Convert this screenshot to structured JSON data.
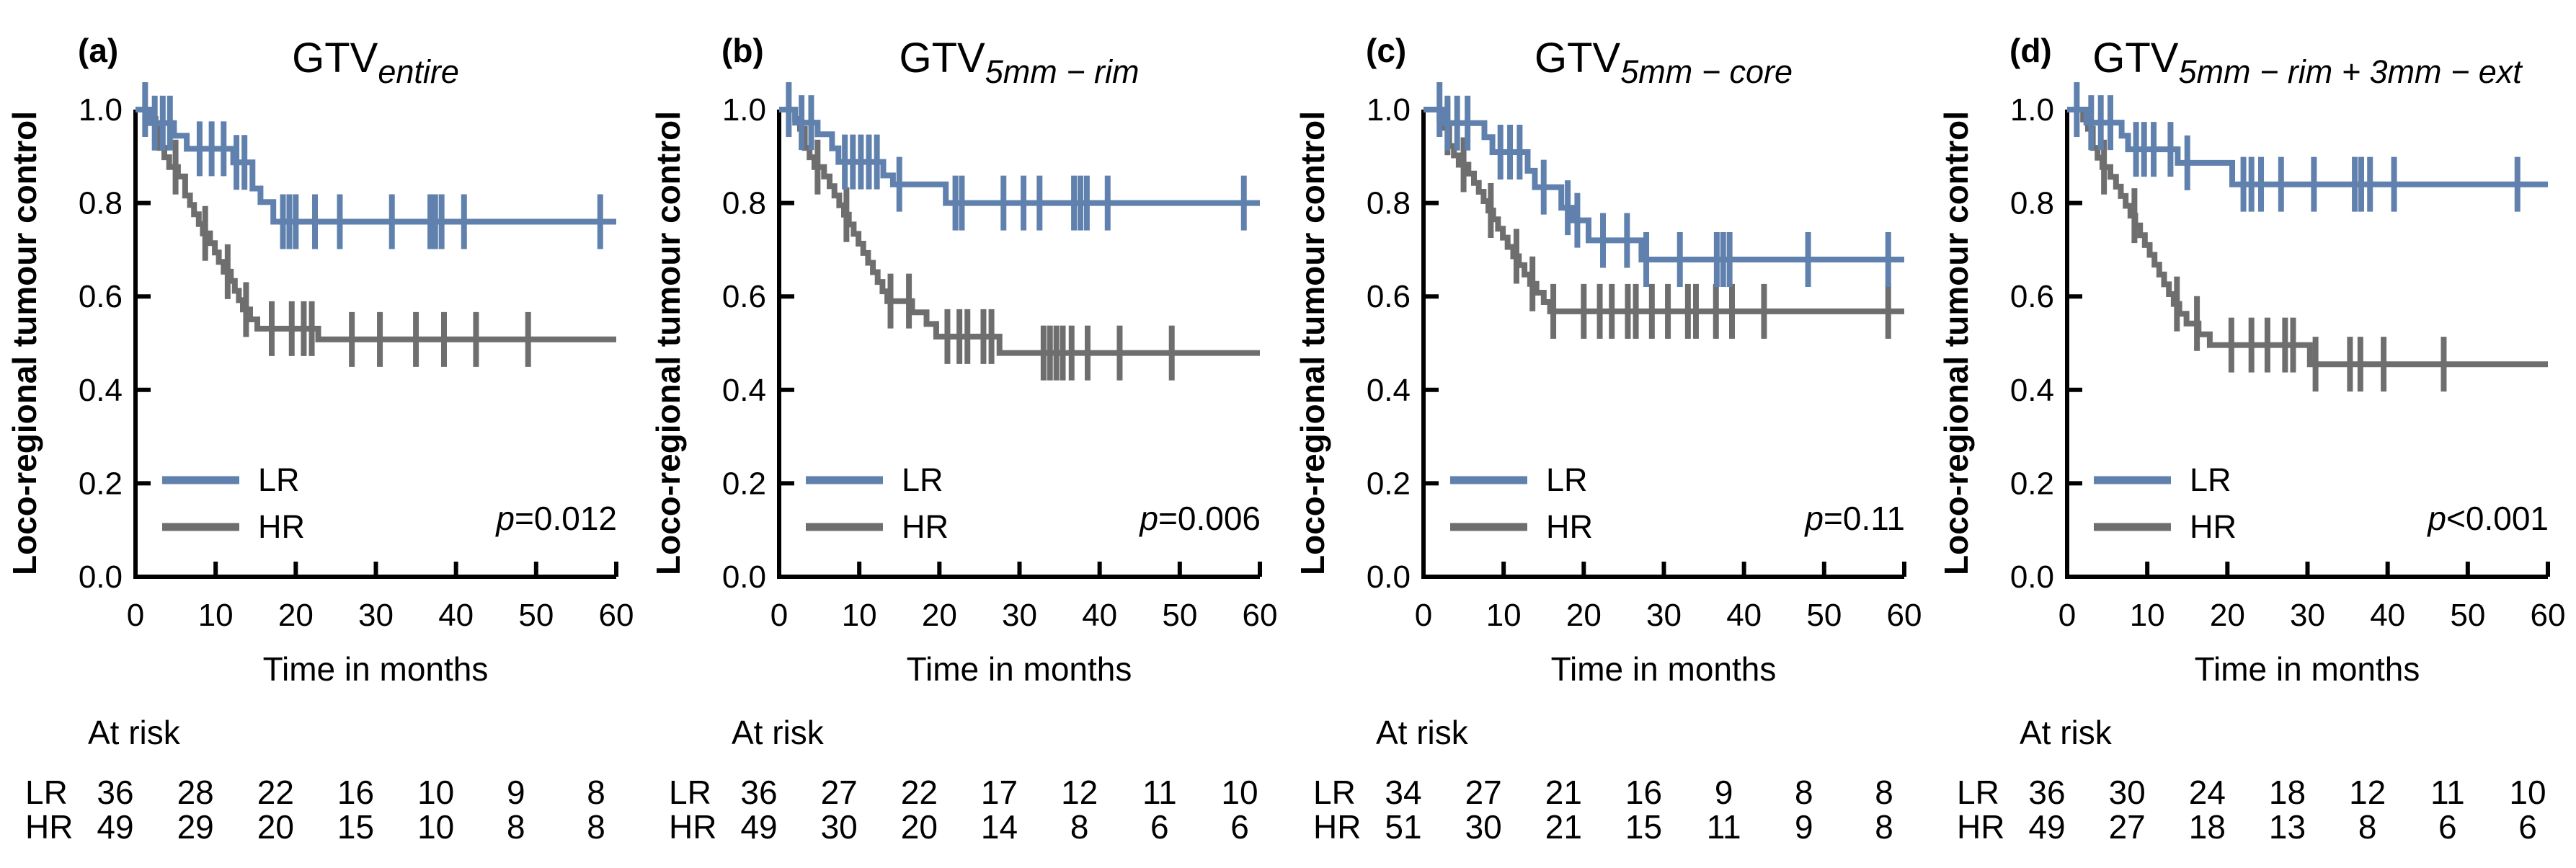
{
  "figure": {
    "ylabel": "Loco-regional tumour control",
    "xlabel": "Time in months",
    "at_risk_header": "At risk",
    "legend": [
      "LR",
      "HR"
    ],
    "colors": {
      "LR": "#6081ad",
      "HR": "#6e6e6e",
      "axis": "#000000"
    },
    "x_ticks": [
      0,
      10,
      20,
      30,
      40,
      50,
      60
    ],
    "y_tick_labels": [
      "0.0",
      "0.2",
      "0.4",
      "0.6",
      "0.8",
      "1.0"
    ]
  },
  "chart_data": [
    {
      "type": "line",
      "subtype": "kaplan-meier",
      "panel_label": "(a)",
      "title": {
        "base": "GTV",
        "subscript": "entire"
      },
      "p_value": {
        "italic": "p",
        "rest": "=0.012"
      },
      "xlabel": "Time in months",
      "ylabel": "Loco-regional tumour control",
      "xlim": [
        0,
        60
      ],
      "ylim": [
        0.0,
        1.0
      ],
      "series": [
        {
          "name": "LR",
          "color": "#6081ad",
          "steps": [
            [
              1.8,
              0.971
            ],
            [
              4.8,
              0.944
            ],
            [
              6.4,
              0.916
            ],
            [
              12.2,
              0.887
            ],
            [
              14.6,
              0.831
            ],
            [
              15.6,
              0.802
            ],
            [
              17.2,
              0.76
            ]
          ],
          "censor_times": [
            1.2,
            2.4,
            3.4,
            4.3,
            8,
            9.5,
            11,
            12.6,
            13.6,
            18.4,
            19.2,
            20,
            22.4,
            25.5,
            32,
            36.8,
            37.4,
            38.2,
            41,
            58
          ]
        },
        {
          "name": "HR",
          "color": "#6e6e6e",
          "steps": [
            [
              2.0,
              0.98
            ],
            [
              2.5,
              0.959
            ],
            [
              3.0,
              0.918
            ],
            [
              3.6,
              0.898
            ],
            [
              4.2,
              0.877
            ],
            [
              5.3,
              0.857
            ],
            [
              6.2,
              0.816
            ],
            [
              6.8,
              0.796
            ],
            [
              7.3,
              0.776
            ],
            [
              7.9,
              0.755
            ],
            [
              8.4,
              0.735
            ],
            [
              9.3,
              0.714
            ],
            [
              9.9,
              0.694
            ],
            [
              10.4,
              0.674
            ],
            [
              11.0,
              0.653
            ],
            [
              11.9,
              0.633
            ],
            [
              12.4,
              0.612
            ],
            [
              12.9,
              0.592
            ],
            [
              13.4,
              0.572
            ],
            [
              14.3,
              0.551
            ],
            [
              15.2,
              0.531
            ],
            [
              22.8,
              0.508
            ]
          ],
          "censor_times": [
            5.0,
            8.7,
            11.5,
            13.8,
            17,
            19.5,
            21,
            22,
            27,
            30.5,
            35,
            38.5,
            42.5,
            49
          ]
        }
      ],
      "at_risk": [
        {
          "label": "LR",
          "counts": [
            36,
            28,
            22,
            16,
            10,
            9,
            8
          ]
        },
        {
          "label": "HR",
          "counts": [
            49,
            29,
            20,
            15,
            10,
            8,
            8
          ]
        }
      ]
    },
    {
      "type": "line",
      "subtype": "kaplan-meier",
      "panel_label": "(b)",
      "title": {
        "base": "GTV",
        "subscript": "5mm − rim"
      },
      "p_value": {
        "italic": "p",
        "rest": "=0.006"
      },
      "xlabel": "Time in months",
      "ylabel": "Loco-regional tumour control",
      "xlim": [
        0,
        60
      ],
      "ylim": [
        0.0,
        1.0
      ],
      "series": [
        {
          "name": "LR",
          "color": "#6081ad",
          "steps": [
            [
              2.0,
              0.972
            ],
            [
              4.8,
              0.947
            ],
            [
              6.6,
              0.917
            ],
            [
              7.4,
              0.888
            ],
            [
              13.0,
              0.859
            ],
            [
              14.2,
              0.84
            ],
            [
              20.8,
              0.8
            ]
          ],
          "censor_times": [
            1.2,
            2.8,
            4,
            8.2,
            9.2,
            10.2,
            11.2,
            12.2,
            15,
            22,
            22.8,
            28,
            30.5,
            32.5,
            36.8,
            37.6,
            38.4,
            41,
            58
          ]
        },
        {
          "name": "HR",
          "color": "#6e6e6e",
          "steps": [
            [
              2.0,
              0.98
            ],
            [
              2.6,
              0.959
            ],
            [
              3.2,
              0.918
            ],
            [
              3.8,
              0.898
            ],
            [
              4.4,
              0.877
            ],
            [
              5.6,
              0.857
            ],
            [
              6.3,
              0.836
            ],
            [
              6.9,
              0.816
            ],
            [
              7.5,
              0.795
            ],
            [
              8.1,
              0.775
            ],
            [
              8.7,
              0.754
            ],
            [
              9.3,
              0.734
            ],
            [
              9.9,
              0.713
            ],
            [
              10.5,
              0.693
            ],
            [
              11.1,
              0.672
            ],
            [
              11.7,
              0.652
            ],
            [
              12.3,
              0.631
            ],
            [
              12.9,
              0.611
            ],
            [
              13.5,
              0.59
            ],
            [
              16.6,
              0.566
            ],
            [
              18.4,
              0.541
            ],
            [
              19.6,
              0.514
            ],
            [
              27.5,
              0.479
            ]
          ],
          "censor_times": [
            4.8,
            8.4,
            13.9,
            16.2,
            21,
            22.5,
            23.5,
            25.5,
            26.5,
            33,
            33.8,
            34.6,
            35.4,
            36.5,
            38.5,
            42.5,
            49
          ]
        }
      ],
      "at_risk": [
        {
          "label": "LR",
          "counts": [
            36,
            27,
            22,
            17,
            12,
            11,
            10
          ]
        },
        {
          "label": "HR",
          "counts": [
            49,
            30,
            20,
            14,
            8,
            6,
            6
          ]
        }
      ]
    },
    {
      "type": "line",
      "subtype": "kaplan-meier",
      "panel_label": "(c)",
      "title": {
        "base": "GTV",
        "subscript": "5mm − core"
      },
      "p_value": {
        "italic": "p",
        "rest": "=0.11"
      },
      "xlabel": "Time in months",
      "ylabel": "Loco-regional tumour control",
      "xlim": [
        0,
        60
      ],
      "ylim": [
        0.0,
        1.0
      ],
      "series": [
        {
          "name": "LR",
          "color": "#6081ad",
          "steps": [
            [
              2.6,
              0.971
            ],
            [
              7.6,
              0.941
            ],
            [
              8.6,
              0.909
            ],
            [
              13.0,
              0.869
            ],
            [
              13.9,
              0.834
            ],
            [
              17.2,
              0.79
            ],
            [
              18.6,
              0.763
            ],
            [
              20.6,
              0.72
            ],
            [
              27.2,
              0.679
            ]
          ],
          "censor_times": [
            2,
            3,
            4.2,
            5.5,
            9.6,
            10.8,
            12,
            15,
            18,
            19.2,
            22.4,
            25.4,
            27.8,
            32,
            36.6,
            37.4,
            38.2,
            48,
            58
          ]
        },
        {
          "name": "HR",
          "color": "#6e6e6e",
          "steps": [
            [
              2.0,
              0.98
            ],
            [
              2.6,
              0.961
            ],
            [
              3.2,
              0.922
            ],
            [
              3.8,
              0.902
            ],
            [
              4.4,
              0.882
            ],
            [
              5.6,
              0.863
            ],
            [
              6.3,
              0.843
            ],
            [
              6.9,
              0.824
            ],
            [
              7.5,
              0.804
            ],
            [
              8.1,
              0.784
            ],
            [
              8.7,
              0.765
            ],
            [
              9.3,
              0.745
            ],
            [
              9.9,
              0.726
            ],
            [
              10.5,
              0.706
            ],
            [
              11.2,
              0.686
            ],
            [
              11.9,
              0.667
            ],
            [
              12.6,
              0.647
            ],
            [
              13.3,
              0.627
            ],
            [
              14.1,
              0.608
            ],
            [
              15.0,
              0.588
            ],
            [
              15.8,
              0.568
            ]
          ],
          "censor_times": [
            3,
            5,
            8.4,
            11.6,
            13.6,
            16.2,
            20,
            22,
            23.5,
            25.5,
            26.5,
            28.5,
            30.5,
            33,
            34,
            36.5,
            38.5,
            42.5,
            58
          ]
        }
      ],
      "at_risk": [
        {
          "label": "LR",
          "counts": [
            34,
            27,
            21,
            16,
            9,
            8,
            8
          ]
        },
        {
          "label": "HR",
          "counts": [
            51,
            30,
            21,
            15,
            11,
            9,
            8
          ]
        }
      ]
    },
    {
      "type": "line",
      "subtype": "kaplan-meier",
      "panel_label": "(d)",
      "title": {
        "base": "GTV",
        "subscript": "5mm − rim + 3mm − ext"
      },
      "p_value": {
        "italic": "p",
        "rest": "<0.001"
      },
      "xlabel": "Time in months",
      "ylabel": "Loco-regional tumour control",
      "xlim": [
        0,
        60
      ],
      "ylim": [
        0.0,
        1.0
      ],
      "series": [
        {
          "name": "LR",
          "color": "#6081ad",
          "steps": [
            [
              2.4,
              0.972
            ],
            [
              6.8,
              0.944
            ],
            [
              7.6,
              0.915
            ],
            [
              13.8,
              0.886
            ],
            [
              20.6,
              0.84
            ]
          ],
          "censor_times": [
            1.2,
            3,
            4.2,
            5.4,
            8.6,
            9.6,
            10.8,
            12.9,
            15,
            22,
            23,
            24.2,
            26.7,
            30.8,
            35.9,
            36.7,
            37.8,
            40.8,
            56.2
          ]
        },
        {
          "name": "HR",
          "color": "#6e6e6e",
          "steps": [
            [
              2.0,
              0.979
            ],
            [
              2.6,
              0.959
            ],
            [
              3.2,
              0.918
            ],
            [
              3.8,
              0.897
            ],
            [
              4.4,
              0.877
            ],
            [
              5.4,
              0.856
            ],
            [
              6.1,
              0.835
            ],
            [
              6.7,
              0.815
            ],
            [
              7.3,
              0.794
            ],
            [
              7.9,
              0.773
            ],
            [
              8.5,
              0.752
            ],
            [
              9.1,
              0.731
            ],
            [
              9.7,
              0.71
            ],
            [
              10.3,
              0.689
            ],
            [
              10.9,
              0.668
            ],
            [
              11.5,
              0.647
            ],
            [
              12.1,
              0.626
            ],
            [
              12.7,
              0.605
            ],
            [
              13.3,
              0.584
            ],
            [
              14.0,
              0.563
            ],
            [
              14.9,
              0.542
            ],
            [
              16.4,
              0.519
            ],
            [
              17.8,
              0.496
            ],
            [
              30.3,
              0.455
            ]
          ],
          "censor_times": [
            4.6,
            8.4,
            13.7,
            16.2,
            20.5,
            23,
            25,
            27.2,
            28.2,
            31,
            35.3,
            36.6,
            39.5,
            47
          ]
        }
      ],
      "at_risk": [
        {
          "label": "LR",
          "counts": [
            36,
            30,
            24,
            18,
            12,
            11,
            10
          ]
        },
        {
          "label": "HR",
          "counts": [
            49,
            27,
            18,
            13,
            8,
            6,
            6
          ]
        }
      ]
    }
  ]
}
